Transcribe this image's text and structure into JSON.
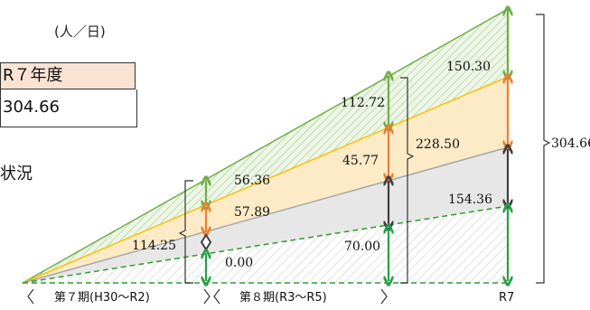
{
  "table": {
    "unit": "(人／日)",
    "header": "R７年度",
    "value": "304.66"
  },
  "caption": "状況",
  "labels": {
    "v56_36": "56.36",
    "v57_89": "57.89",
    "v114_25": "114.25",
    "v0_00": "0.00",
    "v112_72": "112.72",
    "v45_77": "45.77",
    "v228_50": "228.50",
    "v70_00": "70.00",
    "v150_30": "150.30",
    "v154_36": "154.36",
    "v304_66": "304.66"
  },
  "axis": {
    "period7": "第７期(H30～R2)",
    "period8": "第８期(R3～R5)",
    "r7": "R7"
  },
  "colors": {
    "green": "#70ad47",
    "green_dark": "#2e9d2e",
    "orange": "#ed7d31",
    "gray_dark": "#404040",
    "yellow_fill": "#fdebc8",
    "gray_fill": "#e7e7e7",
    "line_yellow": "#ffc000",
    "line_gray": "#a6a6a6"
  }
}
